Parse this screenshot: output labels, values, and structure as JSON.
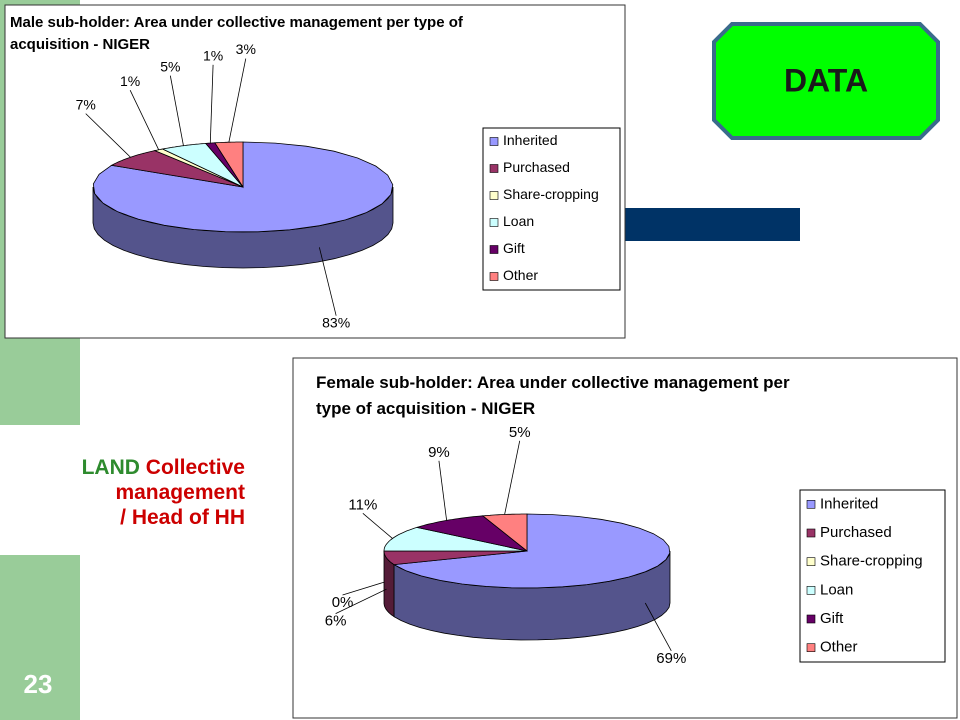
{
  "slide": {
    "badge": "DATA",
    "side_label": [
      "LAND",
      "Collective",
      "management",
      "/ Head of HH"
    ],
    "page_number": "23"
  },
  "chart_data": [
    {
      "type": "pie",
      "title": "Male sub-holder: Area under collective management per type of acquisition - NIGER",
      "categories": [
        "Inherited",
        "Purchased",
        "Share-cropping",
        "Loan",
        "Gift",
        "Other"
      ],
      "values": [
        83,
        7,
        1,
        5,
        1,
        3
      ],
      "value_labels": [
        "83%",
        "7%",
        "1%",
        "5%",
        "1%",
        "3%"
      ],
      "colors": [
        "#9999ff",
        "#993366",
        "#ffffcc",
        "#ccffff",
        "#660066",
        "#ff8080"
      ]
    },
    {
      "type": "pie",
      "title": "Female sub-holder: Area under collective management per type of acquisition - NIGER",
      "categories": [
        "Inherited",
        "Purchased",
        "Share-cropping",
        "Loan",
        "Gift",
        "Other"
      ],
      "values": [
        69,
        6,
        0,
        11,
        9,
        5
      ],
      "value_labels": [
        "69%",
        "6%",
        "0%",
        "11%",
        "9%",
        "5%"
      ],
      "colors": [
        "#9999ff",
        "#993366",
        "#ffffcc",
        "#ccffff",
        "#660066",
        "#ff8080"
      ]
    }
  ]
}
